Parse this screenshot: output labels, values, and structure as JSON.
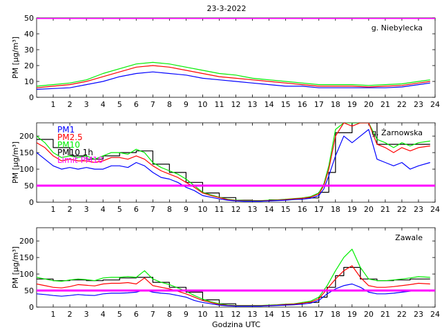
{
  "figure": {
    "title": "23-3-2022",
    "xlabel": "Godzina UTC"
  },
  "colors": {
    "pm1": "#0000ff",
    "pm25": "#ff0000",
    "pm10": "#00ee00",
    "pm10_1h": "#000000",
    "limit": "#ff00ff"
  },
  "legend": [
    "PM1",
    "PM2.5",
    "PM10",
    "PM10 1h",
    "Limit PM10"
  ],
  "chart_data": [
    {
      "type": "line",
      "station": "g. Niebylecka",
      "ylabel": "PM [μg/m³]",
      "xlim": [
        0,
        24
      ],
      "ylim": [
        0,
        50
      ],
      "yticks": [
        0,
        10,
        20,
        30,
        40,
        50
      ],
      "xticks": [
        1,
        2,
        3,
        4,
        5,
        6,
        7,
        8,
        9,
        10,
        11,
        12,
        13,
        14,
        15,
        16,
        17,
        18,
        19,
        20,
        21,
        22,
        23,
        24
      ],
      "limit": 50,
      "x": [
        0,
        1,
        2,
        3,
        4,
        5,
        6,
        7,
        8,
        9,
        10,
        11,
        12,
        13,
        14,
        15,
        16,
        17,
        18,
        19,
        20,
        21,
        22,
        23,
        23.7
      ],
      "series": [
        {
          "name": "PM1",
          "values": [
            5,
            5.5,
            6,
            8,
            10,
            13,
            15,
            16,
            15,
            14,
            12,
            11,
            10,
            9,
            8,
            7,
            7,
            6,
            6,
            6,
            6,
            6,
            6.5,
            8,
            9
          ]
        },
        {
          "name": "PM2.5",
          "values": [
            6,
            7,
            8,
            10,
            13,
            16,
            19,
            20,
            19,
            17,
            15,
            13,
            12,
            11,
            10,
            9,
            8,
            7,
            7,
            7,
            6.5,
            7,
            7.5,
            9,
            10
          ]
        },
        {
          "name": "PM10",
          "values": [
            7,
            8,
            9,
            11,
            15,
            18,
            21,
            22,
            21,
            19,
            17,
            15,
            14,
            12,
            11,
            10,
            9,
            8,
            8,
            8,
            7.5,
            8,
            8.5,
            10,
            11
          ]
        }
      ]
    },
    {
      "type": "line",
      "station": "g. Żarnowska",
      "ylabel": "PM [μg/m³]",
      "xlim": [
        0,
        24
      ],
      "ylim": [
        0,
        240
      ],
      "yticks": [
        0,
        50,
        100,
        150,
        200
      ],
      "xticks": [
        1,
        2,
        3,
        4,
        5,
        6,
        7,
        8,
        9,
        10,
        11,
        12,
        13,
        14,
        15,
        16,
        17,
        18,
        19,
        20,
        21,
        22,
        23,
        24
      ],
      "limit": 50,
      "x": [
        0,
        0.5,
        1,
        1.5,
        2,
        2.5,
        3,
        3.5,
        4,
        4.5,
        5,
        5.5,
        6,
        6.5,
        7,
        7.5,
        8,
        8.5,
        9,
        9.5,
        10,
        10.5,
        11,
        11.5,
        12,
        12.5,
        13,
        13.5,
        14,
        14.5,
        15,
        15.5,
        16,
        16.5,
        17,
        17.3,
        17.6,
        18,
        18.5,
        19,
        19.5,
        20,
        20.5,
        21,
        21.5,
        22,
        22.5,
        23,
        23.7
      ],
      "series": [
        {
          "name": "PM1",
          "values": [
            150,
            130,
            110,
            100,
            105,
            100,
            105,
            100,
            100,
            110,
            110,
            105,
            120,
            110,
            90,
            75,
            70,
            60,
            45,
            35,
            20,
            15,
            10,
            6,
            4,
            3,
            3,
            3,
            4,
            5,
            6,
            8,
            9,
            12,
            20,
            40,
            80,
            140,
            200,
            180,
            200,
            220,
            130,
            120,
            110,
            120,
            100,
            110,
            120
          ]
        },
        {
          "name": "PM2.5",
          "values": [
            180,
            165,
            140,
            125,
            130,
            125,
            125,
            120,
            125,
            135,
            135,
            130,
            140,
            130,
            110,
            95,
            85,
            75,
            60,
            45,
            28,
            20,
            14,
            8,
            5,
            4,
            4,
            4,
            5,
            6,
            8,
            10,
            12,
            15,
            25,
            50,
            100,
            200,
            240,
            230,
            240,
            240,
            175,
            165,
            150,
            165,
            155,
            165,
            170
          ]
        },
        {
          "name": "PM10",
          "values": [
            200,
            180,
            150,
            135,
            140,
            135,
            140,
            130,
            140,
            150,
            150,
            145,
            160,
            150,
            120,
            105,
            95,
            85,
            70,
            50,
            30,
            22,
            15,
            9,
            6,
            5,
            5,
            5,
            6,
            7,
            9,
            11,
            13,
            17,
            28,
            55,
            110,
            220,
            240,
            240,
            240,
            240,
            190,
            180,
            165,
            180,
            170,
            180,
            185
          ]
        },
        {
          "name": "PM10 1h",
          "values": [
            190,
            190,
            165,
            165,
            140,
            140,
            130,
            130,
            140,
            140,
            150,
            150,
            155,
            155,
            115,
            115,
            90,
            90,
            60,
            60,
            28,
            28,
            14,
            14,
            6,
            6,
            5,
            5,
            7,
            7,
            9,
            9,
            13,
            13,
            30,
            30,
            90,
            210,
            210,
            240,
            240,
            240,
            175,
            175,
            175,
            175,
            175,
            175,
            175
          ]
        }
      ]
    },
    {
      "type": "line",
      "station": "Zawale",
      "ylabel": "PM [μg/m³]",
      "xlim": [
        0,
        24
      ],
      "ylim": [
        0,
        240
      ],
      "yticks": [
        0,
        50,
        100,
        150,
        200
      ],
      "xticks": [
        1,
        2,
        3,
        4,
        5,
        6,
        7,
        8,
        9,
        10,
        11,
        12,
        13,
        14,
        15,
        16,
        17,
        18,
        19,
        20,
        21,
        22,
        23,
        24
      ],
      "limit": 50,
      "x": [
        0,
        0.5,
        1,
        1.5,
        2,
        2.5,
        3,
        3.5,
        4,
        4.5,
        5,
        5.5,
        6,
        6.5,
        7,
        7.5,
        8,
        8.5,
        9,
        9.5,
        10,
        10.5,
        11,
        11.5,
        12,
        12.5,
        13,
        13.5,
        14,
        14.5,
        15,
        15.5,
        16,
        16.5,
        17,
        17.5,
        18,
        18.5,
        19,
        19.5,
        20,
        20.5,
        21,
        21.5,
        22,
        22.5,
        23,
        23.7
      ],
      "series": [
        {
          "name": "PM1",
          "values": [
            40,
            38,
            35,
            33,
            35,
            38,
            36,
            35,
            40,
            42,
            42,
            43,
            45,
            52,
            45,
            42,
            40,
            35,
            30,
            20,
            14,
            10,
            6,
            4,
            3,
            3,
            3,
            3,
            4,
            5,
            6,
            7,
            9,
            12,
            20,
            40,
            55,
            65,
            70,
            60,
            45,
            40,
            40,
            42,
            45,
            48,
            50,
            48
          ]
        },
        {
          "name": "PM2.5",
          "values": [
            70,
            65,
            60,
            58,
            62,
            68,
            66,
            64,
            70,
            72,
            72,
            74,
            70,
            88,
            65,
            60,
            55,
            48,
            40,
            30,
            20,
            14,
            8,
            5,
            4,
            4,
            4,
            4,
            5,
            6,
            8,
            9,
            12,
            15,
            25,
            55,
            85,
            110,
            125,
            90,
            65,
            60,
            60,
            62,
            65,
            68,
            72,
            70
          ]
        },
        {
          "name": "PM10",
          "values": [
            90,
            85,
            80,
            78,
            82,
            85,
            83,
            80,
            88,
            90,
            90,
            92,
            90,
            110,
            85,
            75,
            68,
            58,
            48,
            35,
            24,
            16,
            10,
            6,
            5,
            5,
            5,
            5,
            6,
            7,
            9,
            10,
            14,
            18,
            30,
            65,
            110,
            150,
            175,
            120,
            85,
            80,
            80,
            82,
            85,
            88,
            92,
            90
          ]
        },
        {
          "name": "PM10 1h",
          "values": [
            85,
            85,
            80,
            80,
            82,
            82,
            80,
            80,
            82,
            82,
            88,
            88,
            90,
            90,
            75,
            75,
            60,
            60,
            45,
            45,
            22,
            22,
            10,
            10,
            5,
            5,
            5,
            5,
            6,
            6,
            9,
            9,
            14,
            14,
            30,
            60,
            95,
            120,
            120,
            85,
            85,
            80,
            80,
            82,
            82,
            85,
            85,
            85
          ]
        }
      ]
    }
  ]
}
